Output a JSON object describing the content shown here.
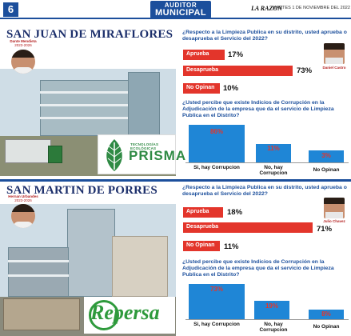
{
  "header": {
    "page_number": "6",
    "logo_top": "AUDITOR",
    "logo_bottom": "MUNICIPAL",
    "newspaper": "LA RAZON",
    "date": "MARTES 1 DE NOVIEMBRE DEL 2022"
  },
  "colors": {
    "brand_blue": "#1c4f9c",
    "bar_red": "#e3352b",
    "column_blue": "#1f86d6"
  },
  "sections": [
    {
      "district": "SAN JUAN DE MIRAFLORES",
      "mayor": {
        "name": "Dante Mendieta",
        "years": "2023-2026"
      },
      "candidate": "Daniel Castro",
      "company_logo": "PRISMA",
      "company_tagline": "TECNOLOGÍAS ECOLÓGICAS",
      "q1": "¿Respecto a la Limpieza Publica en su distrito, usted aprueba o desaprueba el Servicio del 2022?",
      "answers": [
        {
          "label": "Aprueba",
          "value": "17%",
          "pct": 17
        },
        {
          "label": "Desaprueba",
          "value": "73%",
          "pct": 73
        },
        {
          "label": "No Opinan",
          "value": "10%",
          "pct": 10
        }
      ],
      "q2": "¿Usted percibe que existe Indicios de Corrupción en la Adjudicación de la empresa que da el servicio de Limpieza Publica en el Distrito?",
      "columns": [
        {
          "label": "Si, hay Corrupcion",
          "value": "86%",
          "pct": 86
        },
        {
          "label": "No, hay Corrupcion",
          "value": "11%",
          "pct": 11
        },
        {
          "label": "No Opinan",
          "value": "3%",
          "pct": 3
        }
      ]
    },
    {
      "district": "SAN MARTIN DE PORRES",
      "mayor": {
        "name": "Hernan Urbandes",
        "years": "2023-2026"
      },
      "candidate": "Julio Chavez",
      "company_logo": "Repersa",
      "q1": "¿Respecto a la Limpieza Publica en su distrito, usted aprueba o desaprueba el Servicio del 2022?",
      "answers": [
        {
          "label": "Aprueba",
          "value": "18%",
          "pct": 18
        },
        {
          "label": "Desaprueba",
          "value": "71%",
          "pct": 71
        },
        {
          "label": "No Opinan",
          "value": "11%",
          "pct": 11
        }
      ],
      "q2": "¿Usted percibe que existe Indicios de Corrupción en la Adjudicación de la empresa que da el servicio de Limpieza Publica en el Distrito?",
      "columns": [
        {
          "label": "Si, hay Corrupcion",
          "value": "73%",
          "pct": 73
        },
        {
          "label": "No, hay Corrupcion",
          "value": "19%",
          "pct": 19
        },
        {
          "label": "No Opinan",
          "value": "8%",
          "pct": 8
        }
      ]
    }
  ]
}
